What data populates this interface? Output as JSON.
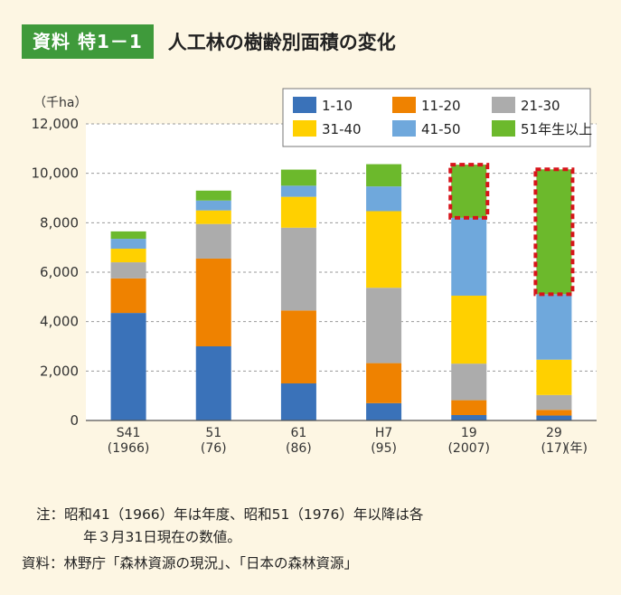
{
  "header": {
    "badge": "資料 特1－1",
    "title": "人工林の樹齢別面積の変化"
  },
  "chart_data": {
    "type": "stacked-bar",
    "unit_label": "（千ha）",
    "year_unit": "(年)",
    "ylim": [
      0,
      12000
    ],
    "yticks": [
      "0",
      "2,000",
      "4,000",
      "6,000",
      "8,000",
      "10,000",
      "12,000"
    ],
    "ytick_values": [
      0,
      2000,
      4000,
      6000,
      8000,
      10000,
      12000
    ],
    "grid": true,
    "legend_position": "top-right",
    "categories": [
      {
        "line1": "S41",
        "line2": "(1966)"
      },
      {
        "line1": "51",
        "line2": "(76)"
      },
      {
        "line1": "61",
        "line2": "(86)"
      },
      {
        "line1": "H7",
        "line2": "(95)"
      },
      {
        "line1": "19",
        "line2": "(2007)"
      },
      {
        "line1": "29",
        "line2": "(17)"
      }
    ],
    "series": [
      {
        "name": "1-10",
        "color": "#3a72b9",
        "values": [
          4350,
          3000,
          1500,
          700,
          220,
          200
        ]
      },
      {
        "name": "11-20",
        "color": "#ef8200",
        "values": [
          1400,
          3550,
          2950,
          1620,
          600,
          230
        ]
      },
      {
        "name": "21-30",
        "color": "#acacac",
        "values": [
          650,
          1400,
          3350,
          3050,
          1480,
          600
        ]
      },
      {
        "name": "31-40",
        "color": "#ffd000",
        "values": [
          550,
          550,
          1250,
          3100,
          2750,
          1430
        ]
      },
      {
        "name": "41-50",
        "color": "#6fa8dc",
        "values": [
          400,
          400,
          450,
          1000,
          3150,
          2650
        ]
      },
      {
        "name": "51年生以上",
        "color": "#6cb92c",
        "values": [
          300,
          400,
          650,
          900,
          2150,
          5050
        ]
      }
    ],
    "highlighted": [
      {
        "category_index": 4,
        "series_index": 5
      },
      {
        "category_index": 5,
        "series_index": 5
      }
    ]
  },
  "notes": {
    "line1": "注：昭和41（1966）年は年度、昭和51（1976）年以降は各",
    "line2": "年３月31日現在の数値。",
    "line3": "資料：林野庁「森林資源の現況」、「日本の森林資源」"
  }
}
